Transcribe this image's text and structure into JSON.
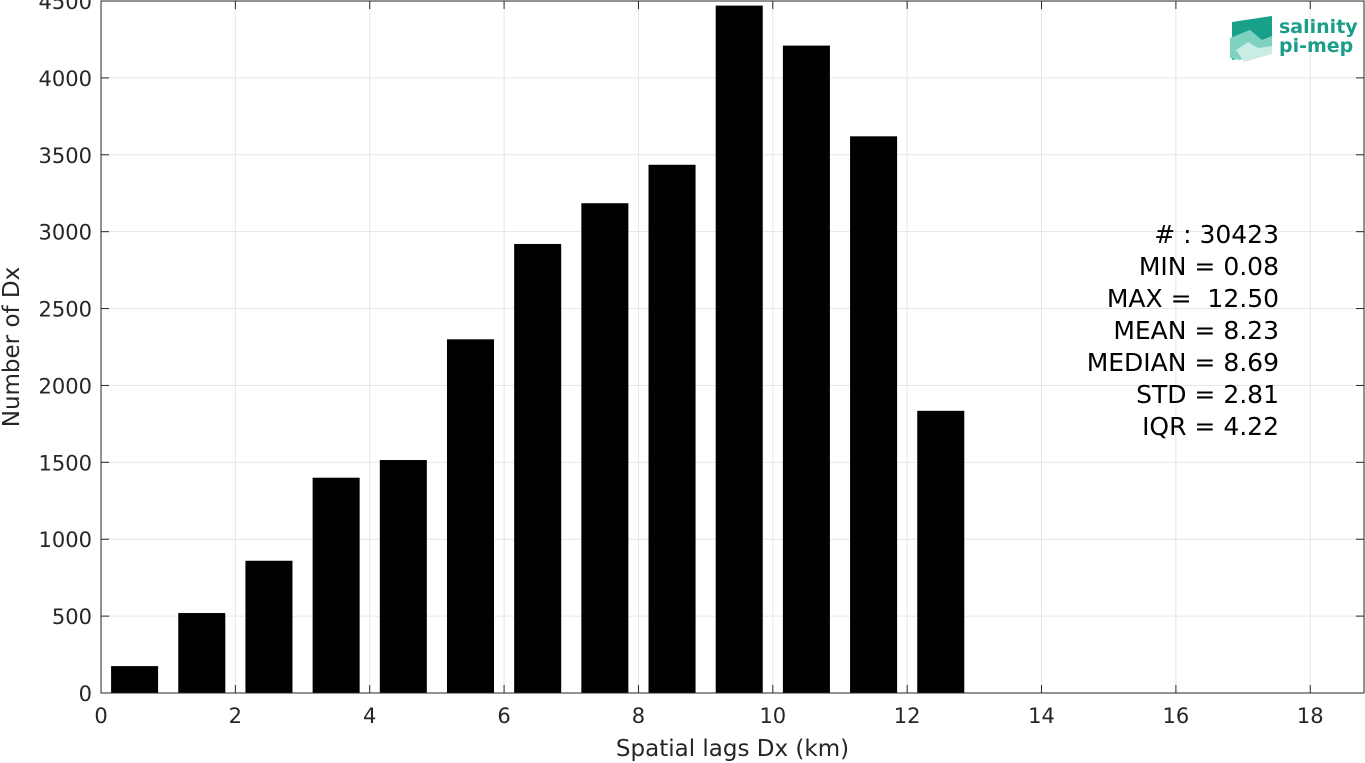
{
  "chart_data": {
    "type": "bar",
    "xlabel": "Spatial lags Dx (km)",
    "ylabel": "Number of Dx",
    "xlim": [
      0,
      18.8
    ],
    "ylim": [
      0,
      4500
    ],
    "xticks": [
      0,
      2,
      4,
      6,
      8,
      10,
      12,
      14,
      16,
      18
    ],
    "yticks": [
      0,
      500,
      1000,
      1500,
      2000,
      2500,
      3000,
      3500,
      4000,
      4500
    ],
    "grid": true,
    "bar_width": 0.7,
    "bar_color": "#000000",
    "x": [
      0.5,
      1.5,
      2.5,
      3.5,
      4.5,
      5.5,
      6.5,
      7.5,
      8.5,
      9.5,
      10.5,
      11.5,
      12.5
    ],
    "values": [
      175,
      520,
      860,
      1400,
      1515,
      2300,
      2920,
      3185,
      3435,
      4470,
      4210,
      3620,
      1835
    ]
  },
  "stats": {
    "lines": [
      "# : 30423",
      "MIN = 0.08",
      "MAX =  12.50",
      "MEAN = 8.23",
      "MEDIAN = 8.69",
      "STD = 2.81",
      "IQR = 4.22"
    ]
  },
  "logo": {
    "line1": "salinity",
    "line2": "pi-mep",
    "color": "#1a9e8a"
  }
}
